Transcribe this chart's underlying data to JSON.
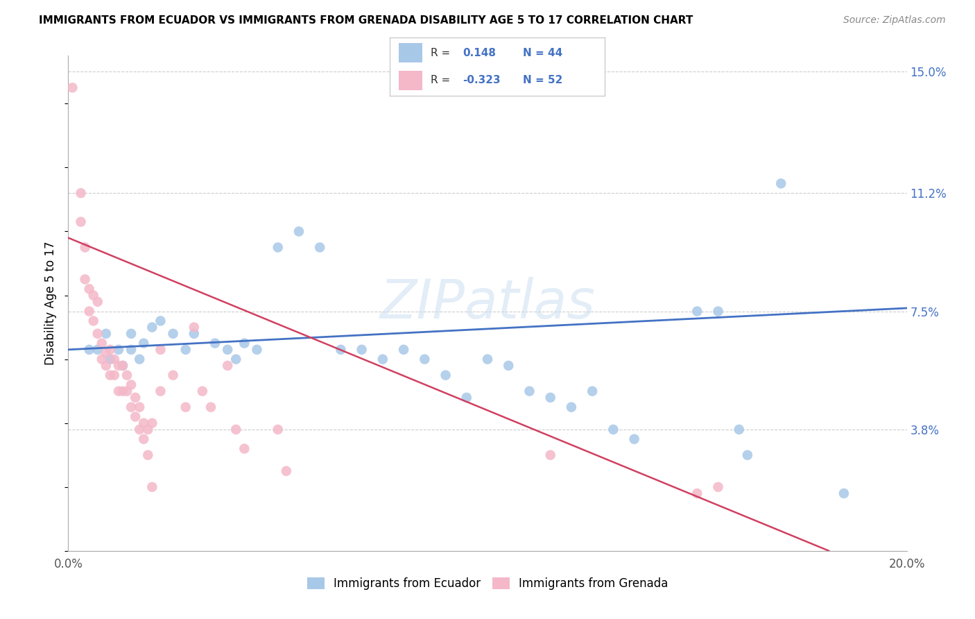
{
  "title": "IMMIGRANTS FROM ECUADOR VS IMMIGRANTS FROM GRENADA DISABILITY AGE 5 TO 17 CORRELATION CHART",
  "source": "Source: ZipAtlas.com",
  "ylabel": "Disability Age 5 to 17",
  "xlim": [
    0.0,
    0.2
  ],
  "ylim": [
    0.0,
    0.155
  ],
  "x_ticks": [
    0.0,
    0.04,
    0.08,
    0.12,
    0.16,
    0.2
  ],
  "x_tick_labels": [
    "0.0%",
    "",
    "",
    "",
    "",
    "20.0%"
  ],
  "y_tick_labels_right": [
    "",
    "3.8%",
    "7.5%",
    "11.2%",
    "15.0%"
  ],
  "y_tick_positions_right": [
    0.0,
    0.038,
    0.075,
    0.112,
    0.15
  ],
  "ecuador_color": "#a8c8e8",
  "grenada_color": "#f4b8c8",
  "ecuador_line_color": "#4472c4",
  "grenada_line_color": "#d04060",
  "R_ecuador": "0.148",
  "N_ecuador": "44",
  "R_grenada": "-0.323",
  "N_grenada": "52",
  "watermark_text": "ZIPatlas",
  "ecuador_line": [
    0.0,
    0.063,
    0.2,
    0.076
  ],
  "grenada_line": [
    0.0,
    0.098,
    0.2,
    -0.01
  ],
  "ecuador_points": [
    [
      0.005,
      0.063
    ],
    [
      0.007,
      0.063
    ],
    [
      0.009,
      0.068
    ],
    [
      0.01,
      0.06
    ],
    [
      0.012,
      0.063
    ],
    [
      0.013,
      0.058
    ],
    [
      0.015,
      0.068
    ],
    [
      0.015,
      0.063
    ],
    [
      0.017,
      0.06
    ],
    [
      0.018,
      0.065
    ],
    [
      0.02,
      0.07
    ],
    [
      0.022,
      0.072
    ],
    [
      0.025,
      0.068
    ],
    [
      0.028,
      0.063
    ],
    [
      0.03,
      0.068
    ],
    [
      0.035,
      0.065
    ],
    [
      0.038,
      0.063
    ],
    [
      0.04,
      0.06
    ],
    [
      0.042,
      0.065
    ],
    [
      0.045,
      0.063
    ],
    [
      0.05,
      0.095
    ],
    [
      0.055,
      0.1
    ],
    [
      0.06,
      0.095
    ],
    [
      0.065,
      0.063
    ],
    [
      0.07,
      0.063
    ],
    [
      0.075,
      0.06
    ],
    [
      0.08,
      0.063
    ],
    [
      0.085,
      0.06
    ],
    [
      0.09,
      0.055
    ],
    [
      0.095,
      0.048
    ],
    [
      0.1,
      0.06
    ],
    [
      0.105,
      0.058
    ],
    [
      0.11,
      0.05
    ],
    [
      0.115,
      0.048
    ],
    [
      0.12,
      0.045
    ],
    [
      0.125,
      0.05
    ],
    [
      0.13,
      0.038
    ],
    [
      0.135,
      0.035
    ],
    [
      0.15,
      0.075
    ],
    [
      0.155,
      0.075
    ],
    [
      0.16,
      0.038
    ],
    [
      0.162,
      0.03
    ],
    [
      0.17,
      0.115
    ],
    [
      0.185,
      0.018
    ]
  ],
  "grenada_points": [
    [
      0.001,
      0.145
    ],
    [
      0.003,
      0.112
    ],
    [
      0.003,
      0.103
    ],
    [
      0.004,
      0.095
    ],
    [
      0.004,
      0.085
    ],
    [
      0.005,
      0.082
    ],
    [
      0.005,
      0.075
    ],
    [
      0.006,
      0.08
    ],
    [
      0.006,
      0.072
    ],
    [
      0.007,
      0.078
    ],
    [
      0.007,
      0.068
    ],
    [
      0.008,
      0.065
    ],
    [
      0.008,
      0.06
    ],
    [
      0.009,
      0.062
    ],
    [
      0.009,
      0.058
    ],
    [
      0.01,
      0.063
    ],
    [
      0.01,
      0.055
    ],
    [
      0.011,
      0.06
    ],
    [
      0.011,
      0.055
    ],
    [
      0.012,
      0.058
    ],
    [
      0.012,
      0.05
    ],
    [
      0.013,
      0.058
    ],
    [
      0.013,
      0.05
    ],
    [
      0.014,
      0.055
    ],
    [
      0.014,
      0.05
    ],
    [
      0.015,
      0.052
    ],
    [
      0.015,
      0.045
    ],
    [
      0.016,
      0.048
    ],
    [
      0.016,
      0.042
    ],
    [
      0.017,
      0.045
    ],
    [
      0.017,
      0.038
    ],
    [
      0.018,
      0.04
    ],
    [
      0.018,
      0.035
    ],
    [
      0.019,
      0.038
    ],
    [
      0.019,
      0.03
    ],
    [
      0.02,
      0.04
    ],
    [
      0.02,
      0.02
    ],
    [
      0.022,
      0.063
    ],
    [
      0.022,
      0.05
    ],
    [
      0.025,
      0.055
    ],
    [
      0.028,
      0.045
    ],
    [
      0.03,
      0.07
    ],
    [
      0.032,
      0.05
    ],
    [
      0.034,
      0.045
    ],
    [
      0.038,
      0.058
    ],
    [
      0.04,
      0.038
    ],
    [
      0.042,
      0.032
    ],
    [
      0.05,
      0.038
    ],
    [
      0.052,
      0.025
    ],
    [
      0.115,
      0.03
    ],
    [
      0.15,
      0.018
    ],
    [
      0.155,
      0.02
    ]
  ]
}
